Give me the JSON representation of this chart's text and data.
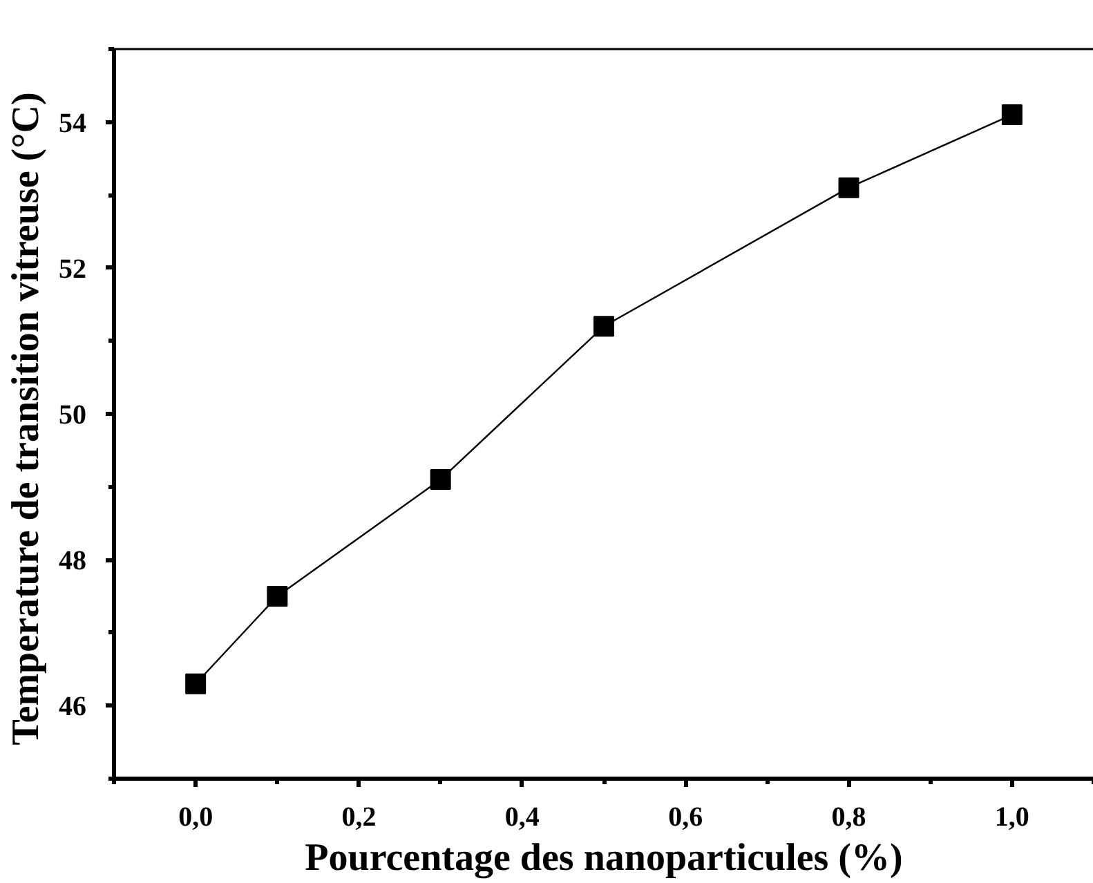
{
  "chart_data": {
    "type": "line",
    "xlabel": "Pourcentage des nanoparticules (%)",
    "ylabel": "Temperature  de transition vitreuse (°C)",
    "x": [
      0.0,
      0.1,
      0.3,
      0.5,
      0.8,
      1.0
    ],
    "series": [
      {
        "color": "#000000",
        "values": [
          46.3,
          47.5,
          49.1,
          51.2,
          53.1,
          54.1
        ]
      }
    ],
    "xlim": [
      -0.1,
      1.1
    ],
    "ylim": [
      45,
      55
    ],
    "xticks": [
      {
        "value": 0,
        "label": "0,0"
      },
      {
        "value": 0.2,
        "label": "0,2"
      },
      {
        "value": 0.4,
        "label": "0,4"
      },
      {
        "value": 0.6,
        "label": "0,6"
      },
      {
        "value": 0.8,
        "label": "0,8"
      },
      {
        "value": 1.0,
        "label": "1,0"
      }
    ],
    "yticks": [
      46,
      48,
      50,
      52,
      54
    ],
    "marker": "square",
    "line_style": "solid",
    "grid": false
  }
}
